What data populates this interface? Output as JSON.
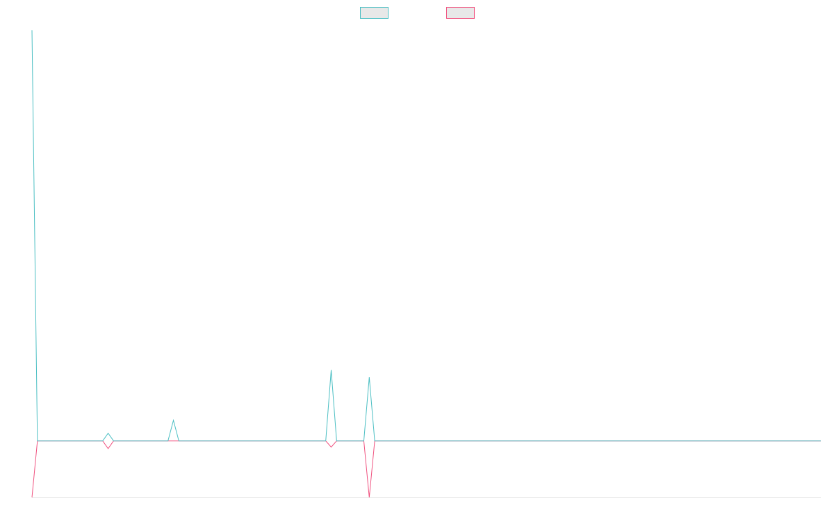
{
  "chart_data": {
    "type": "line",
    "legend": {
      "placement": "top-center",
      "entries": [
        {
          "series_index": 0,
          "label": ""
        },
        {
          "series_index": 1,
          "label": ""
        }
      ]
    },
    "grid": false,
    "x": [
      0,
      1,
      2,
      3,
      4,
      5,
      6,
      7,
      8,
      9,
      10,
      11,
      12,
      13,
      14,
      15,
      16,
      17,
      18,
      19,
      20,
      21,
      22,
      23,
      24,
      25,
      26,
      27,
      28,
      29,
      30,
      31,
      32,
      33,
      34,
      35,
      36,
      37,
      38,
      39,
      40,
      41,
      42,
      43,
      44,
      45,
      46,
      47,
      48,
      49,
      50,
      51,
      52,
      53,
      54,
      55,
      56,
      57,
      58,
      59,
      60,
      61,
      62,
      63,
      64,
      65,
      66,
      67,
      68,
      69,
      70,
      71,
      72,
      73,
      74,
      75,
      76,
      77,
      78,
      79,
      80,
      81,
      82,
      83,
      84,
      85,
      86,
      87,
      88,
      89,
      90,
      91,
      92,
      93,
      94,
      95,
      96,
      97,
      98,
      99,
      100,
      101,
      102,
      103,
      104,
      105,
      106,
      107,
      108,
      109,
      110,
      111,
      112,
      113,
      114,
      115,
      116,
      117,
      118,
      119,
      120,
      121,
      122,
      123,
      124,
      125,
      126,
      127,
      128,
      129,
      130,
      131,
      132,
      133,
      134,
      135,
      136,
      137,
      138,
      139,
      140,
      141,
      142,
      143,
      144,
      145
    ],
    "xlim": [
      0,
      145
    ],
    "ylim": [
      -110,
      810
    ],
    "series": [
      {
        "color": "#4bbfc3",
        "values": [
          800,
          0,
          0,
          0,
          0,
          0,
          0,
          0,
          0,
          0,
          0,
          0,
          0,
          0,
          15,
          0,
          0,
          0,
          0,
          0,
          0,
          0,
          0,
          0,
          0,
          0,
          40,
          0,
          0,
          0,
          0,
          0,
          0,
          0,
          0,
          0,
          0,
          0,
          0,
          0,
          0,
          0,
          0,
          0,
          0,
          0,
          0,
          0,
          0,
          0,
          0,
          0,
          0,
          0,
          0,
          138,
          0,
          0,
          0,
          0,
          0,
          0,
          124,
          0,
          0,
          0,
          0,
          0,
          0,
          0,
          0,
          0,
          0,
          0,
          0,
          0,
          0,
          0,
          0,
          0,
          0,
          0,
          0,
          0,
          0,
          0,
          0,
          0,
          0,
          0,
          0,
          0,
          0,
          0,
          0,
          0,
          0,
          0,
          0,
          0,
          0,
          0,
          0,
          0,
          0,
          0,
          0,
          0,
          0,
          0,
          0,
          0,
          0,
          0,
          0,
          0,
          0,
          0,
          0,
          0,
          0,
          0,
          0,
          0,
          0,
          0,
          0,
          0,
          0,
          0,
          0,
          0,
          0,
          0,
          0,
          0,
          0,
          0,
          0,
          0,
          0,
          0,
          0,
          0,
          0,
          0
        ]
      },
      {
        "color": "#f0507e",
        "values": [
          -110,
          0,
          0,
          0,
          0,
          0,
          0,
          0,
          0,
          0,
          0,
          0,
          0,
          0,
          -15,
          0,
          0,
          0,
          0,
          0,
          0,
          0,
          0,
          0,
          0,
          0,
          0,
          0,
          0,
          0,
          0,
          0,
          0,
          0,
          0,
          0,
          0,
          0,
          0,
          0,
          0,
          0,
          0,
          0,
          0,
          0,
          0,
          0,
          0,
          0,
          0,
          0,
          0,
          0,
          0,
          -12,
          0,
          0,
          0,
          0,
          0,
          0,
          -110,
          0,
          0,
          0,
          0,
          0,
          0,
          0,
          0,
          0,
          0,
          0,
          0,
          0,
          0,
          0,
          0,
          0,
          0,
          0,
          0,
          0,
          0,
          0,
          0,
          0,
          0,
          0,
          0,
          0,
          0,
          0,
          0,
          0,
          0,
          0,
          0,
          0,
          0,
          0,
          0,
          0,
          0,
          0,
          0,
          0,
          0,
          0,
          0,
          0,
          0,
          0,
          0,
          0,
          0,
          0,
          0,
          0,
          0,
          0,
          0,
          0,
          0,
          0,
          0,
          0,
          0,
          0,
          0,
          0,
          0,
          0,
          0,
          0,
          0,
          0,
          0,
          0,
          0,
          0,
          0,
          0,
          0,
          0
        ]
      }
    ],
    "legend_fill": "#e8e8e8",
    "axis_color": "#e6e6e6"
  }
}
